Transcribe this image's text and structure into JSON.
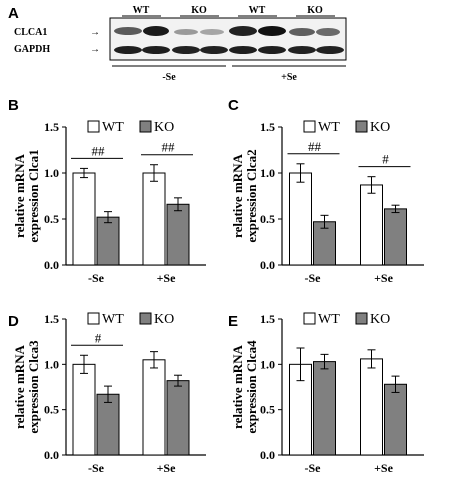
{
  "panel_a": {
    "letter": "A",
    "lane_labels": [
      "WT",
      "KO",
      "WT",
      "KO"
    ],
    "row_labels": [
      "CLCA1",
      "GAPDH"
    ],
    "group_labels": [
      "-Se",
      "+Se"
    ]
  },
  "colors": {
    "wt": "#ffffff",
    "ko": "#808080",
    "stroke": "#000000"
  },
  "chart_data": [
    {
      "panel": "B",
      "type": "bar",
      "ylabel_lines": [
        "relative mRNA",
        "expression Clca1"
      ],
      "categories": [
        "-Se",
        "+Se"
      ],
      "ylim": [
        0,
        1.5
      ],
      "yticks": [
        "0.0",
        "0.5",
        "1.0",
        "1.5"
      ],
      "legend": [
        "WT",
        "KO"
      ],
      "series": [
        {
          "name": "WT",
          "values": [
            1.0,
            1.0
          ],
          "errors": [
            0.05,
            0.09
          ]
        },
        {
          "name": "KO",
          "values": [
            0.52,
            0.66
          ],
          "errors": [
            0.06,
            0.07
          ]
        }
      ],
      "significance": [
        {
          "category": 0,
          "label": "##"
        },
        {
          "category": 1,
          "label": "##"
        }
      ]
    },
    {
      "panel": "C",
      "type": "bar",
      "ylabel_lines": [
        "relative mRNA",
        "expression Clca2"
      ],
      "categories": [
        "-Se",
        "+Se"
      ],
      "ylim": [
        0,
        1.5
      ],
      "yticks": [
        "0.0",
        "0.5",
        "1.0",
        "1.5"
      ],
      "legend": [
        "WT",
        "KO"
      ],
      "series": [
        {
          "name": "WT",
          "values": [
            1.0,
            0.87
          ],
          "errors": [
            0.1,
            0.09
          ]
        },
        {
          "name": "KO",
          "values": [
            0.47,
            0.61
          ],
          "errors": [
            0.07,
            0.04
          ]
        }
      ],
      "significance": [
        {
          "category": 0,
          "label": "##"
        },
        {
          "category": 1,
          "label": "#"
        }
      ]
    },
    {
      "panel": "D",
      "type": "bar",
      "ylabel_lines": [
        "relative mRNA",
        "expression Clca3"
      ],
      "categories": [
        "-Se",
        "+Se"
      ],
      "ylim": [
        0,
        1.5
      ],
      "yticks": [
        "0.0",
        "0.5",
        "1.0",
        "1.5"
      ],
      "legend": [
        "WT",
        "KO"
      ],
      "series": [
        {
          "name": "WT",
          "values": [
            1.0,
            1.05
          ],
          "errors": [
            0.1,
            0.09
          ]
        },
        {
          "name": "KO",
          "values": [
            0.67,
            0.82
          ],
          "errors": [
            0.09,
            0.06
          ]
        }
      ],
      "significance": [
        {
          "category": 0,
          "label": "#"
        }
      ]
    },
    {
      "panel": "E",
      "type": "bar",
      "ylabel_lines": [
        "relative mRNA",
        "expression Clca4"
      ],
      "categories": [
        "-Se",
        "+Se"
      ],
      "ylim": [
        0,
        1.5
      ],
      "yticks": [
        "0.0",
        "0.5",
        "1.0",
        "1.5"
      ],
      "legend": [
        "WT",
        "KO"
      ],
      "series": [
        {
          "name": "WT",
          "values": [
            1.0,
            1.06
          ],
          "errors": [
            0.18,
            0.1
          ]
        },
        {
          "name": "KO",
          "values": [
            1.03,
            0.78
          ],
          "errors": [
            0.08,
            0.09
          ]
        }
      ],
      "significance": []
    }
  ]
}
